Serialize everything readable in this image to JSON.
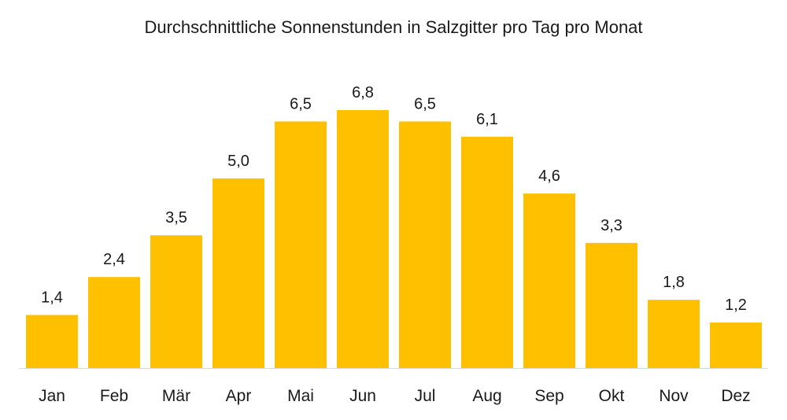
{
  "chart_data": {
    "type": "bar",
    "title": "Durchschnittliche Sonnenstunden in Salzgitter pro Tag pro Monat",
    "categories": [
      "Jan",
      "Feb",
      "Mär",
      "Apr",
      "Mai",
      "Jun",
      "Jul",
      "Aug",
      "Sep",
      "Okt",
      "Nov",
      "Dez"
    ],
    "values": [
      1.4,
      2.4,
      3.5,
      5.0,
      6.5,
      6.8,
      6.5,
      6.1,
      4.6,
      3.3,
      1.8,
      1.2
    ],
    "value_labels": [
      "1,4",
      "2,4",
      "3,5",
      "5,0",
      "6,5",
      "6,8",
      "6,5",
      "6,1",
      "4,6",
      "3,3",
      "1,8",
      "1,2"
    ],
    "xlabel": "",
    "ylabel": "",
    "ylim": [
      0,
      6.8
    ],
    "grid": false,
    "legend": "none",
    "bar_color": "#FFC000",
    "axis_color": "#d9d9d9"
  }
}
